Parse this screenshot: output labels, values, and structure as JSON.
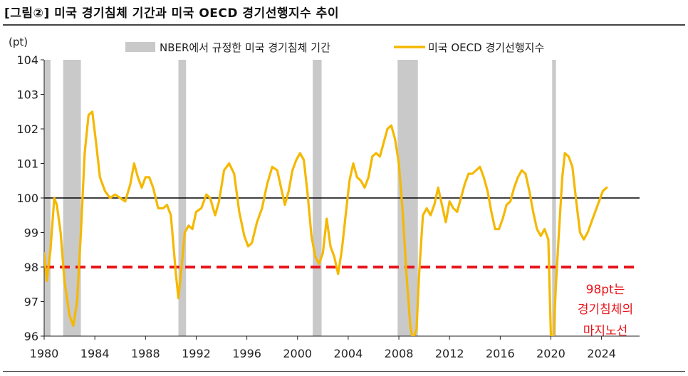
{
  "title": "[그림②] 미국 경기침체 기간과 미국 OECD 경기선행지수 추이",
  "chart_data": {
    "type": "line",
    "title": "[그림②] 미국 경기침체 기간과 미국 OECD 경기선행지수 추이",
    "ylabel": "(pt)",
    "xlabel": "",
    "ylim": [
      96,
      104
    ],
    "xlim": [
      1980,
      2027
    ],
    "yticks": [
      "96",
      "97",
      "98",
      "99",
      "100",
      "101",
      "102",
      "103",
      "104"
    ],
    "xticks": [
      "1980",
      "1984",
      "1988",
      "1992",
      "1996",
      "2000",
      "2004",
      "2008",
      "2012",
      "2016",
      "2020",
      "2024"
    ],
    "legend": {
      "recession_label": "NBER에서 규정한 미국 경기침체 기간",
      "series_label": "미국 OECD 경기선행지수",
      "position": "top"
    },
    "recessions": [
      {
        "start": 1980.0,
        "end": 1980.5
      },
      {
        "start": 1981.5,
        "end": 1982.9
      },
      {
        "start": 1990.6,
        "end": 1991.2
      },
      {
        "start": 2001.2,
        "end": 2001.9
      },
      {
        "start": 2007.9,
        "end": 2009.5
      },
      {
        "start": 2020.1,
        "end": 2020.4
      }
    ],
    "reference_lines": [
      {
        "value": 100,
        "color": "#000000",
        "style": "solid"
      },
      {
        "value": 98,
        "color": "#e8141b",
        "style": "dashed"
      }
    ],
    "annotation": {
      "lines": [
        "98pt는",
        "경기침체의",
        "마지노선"
      ],
      "color": "#e8141b"
    },
    "series": [
      {
        "name": "미국 OECD 경기선행지수",
        "color": "#f5b800",
        "x": [
          1980.0,
          1980.2,
          1980.5,
          1980.8,
          1981.0,
          1981.3,
          1981.6,
          1982.0,
          1982.3,
          1982.6,
          1982.9,
          1983.2,
          1983.5,
          1983.8,
          1984.1,
          1984.4,
          1984.8,
          1985.2,
          1985.6,
          1986.0,
          1986.4,
          1986.8,
          1987.1,
          1987.4,
          1987.7,
          1988.0,
          1988.3,
          1988.6,
          1989.0,
          1989.4,
          1989.7,
          1990.0,
          1990.4,
          1990.6,
          1990.9,
          1991.1,
          1991.4,
          1991.7,
          1992.0,
          1992.4,
          1992.8,
          1993.1,
          1993.5,
          1993.8,
          1994.2,
          1994.6,
          1995.0,
          1995.4,
          1995.8,
          1996.1,
          1996.4,
          1996.8,
          1997.2,
          1997.6,
          1998.0,
          1998.4,
          1998.7,
          1999.0,
          1999.3,
          1999.6,
          1999.9,
          2000.2,
          2000.5,
          2000.8,
          2001.1,
          2001.4,
          2001.7,
          2002.0,
          2002.3,
          2002.6,
          2002.9,
          2003.2,
          2003.5,
          2003.8,
          2004.1,
          2004.4,
          2004.7,
          2005.0,
          2005.3,
          2005.6,
          2005.9,
          2006.2,
          2006.5,
          2006.8,
          2007.1,
          2007.4,
          2007.7,
          2008.0,
          2008.3,
          2008.6,
          2008.9,
          2009.1,
          2009.4,
          2009.6,
          2009.9,
          2010.2,
          2010.5,
          2010.8,
          2011.1,
          2011.4,
          2011.7,
          2012.0,
          2012.3,
          2012.6,
          2012.9,
          2013.2,
          2013.5,
          2013.8,
          2014.1,
          2014.4,
          2014.7,
          2015.0,
          2015.3,
          2015.6,
          2015.9,
          2016.2,
          2016.5,
          2016.8,
          2017.1,
          2017.4,
          2017.7,
          2018.0,
          2018.3,
          2018.6,
          2018.9,
          2019.2,
          2019.5,
          2019.8,
          2020.0,
          2020.2,
          2020.4,
          2020.6,
          2020.9,
          2021.1,
          2021.4,
          2021.7,
          2022.0,
          2022.3,
          2022.6,
          2022.9,
          2023.2,
          2023.5,
          2023.8,
          2024.1,
          2024.4
        ],
        "values": [
          98.4,
          97.6,
          98.5,
          100.0,
          99.8,
          99.0,
          97.6,
          96.6,
          96.3,
          97.0,
          99.0,
          101.3,
          102.4,
          102.5,
          101.6,
          100.6,
          100.2,
          100.0,
          100.1,
          100.0,
          99.9,
          100.4,
          101.0,
          100.6,
          100.3,
          100.6,
          100.6,
          100.3,
          99.7,
          99.7,
          99.8,
          99.5,
          97.8,
          97.1,
          98.2,
          99.0,
          99.2,
          99.1,
          99.6,
          99.7,
          100.1,
          100.0,
          99.5,
          99.9,
          100.8,
          101.0,
          100.7,
          99.6,
          98.9,
          98.6,
          98.7,
          99.3,
          99.7,
          100.4,
          100.9,
          100.8,
          100.3,
          99.8,
          100.2,
          100.8,
          101.1,
          101.3,
          101.1,
          100.1,
          98.9,
          98.3,
          98.1,
          98.4,
          99.4,
          98.6,
          98.3,
          97.8,
          98.5,
          99.5,
          100.5,
          101.0,
          100.6,
          100.5,
          100.3,
          100.6,
          101.2,
          101.3,
          101.2,
          101.6,
          102.0,
          102.1,
          101.7,
          101.0,
          99.6,
          97.8,
          96.3,
          95.9,
          96.2,
          97.8,
          99.5,
          99.7,
          99.5,
          99.8,
          100.3,
          99.8,
          99.3,
          99.9,
          99.7,
          99.6,
          100.0,
          100.4,
          100.7,
          100.7,
          100.8,
          100.9,
          100.6,
          100.2,
          99.6,
          99.1,
          99.1,
          99.4,
          99.8,
          99.9,
          100.3,
          100.6,
          100.8,
          100.7,
          100.2,
          99.6,
          99.1,
          98.9,
          99.1,
          98.8,
          96.0,
          95.9,
          97.5,
          98.8,
          100.6,
          101.3,
          101.2,
          100.9,
          99.9,
          99.0,
          98.8,
          99.0,
          99.3,
          99.6,
          99.9,
          100.2,
          100.3
        ]
      }
    ]
  }
}
